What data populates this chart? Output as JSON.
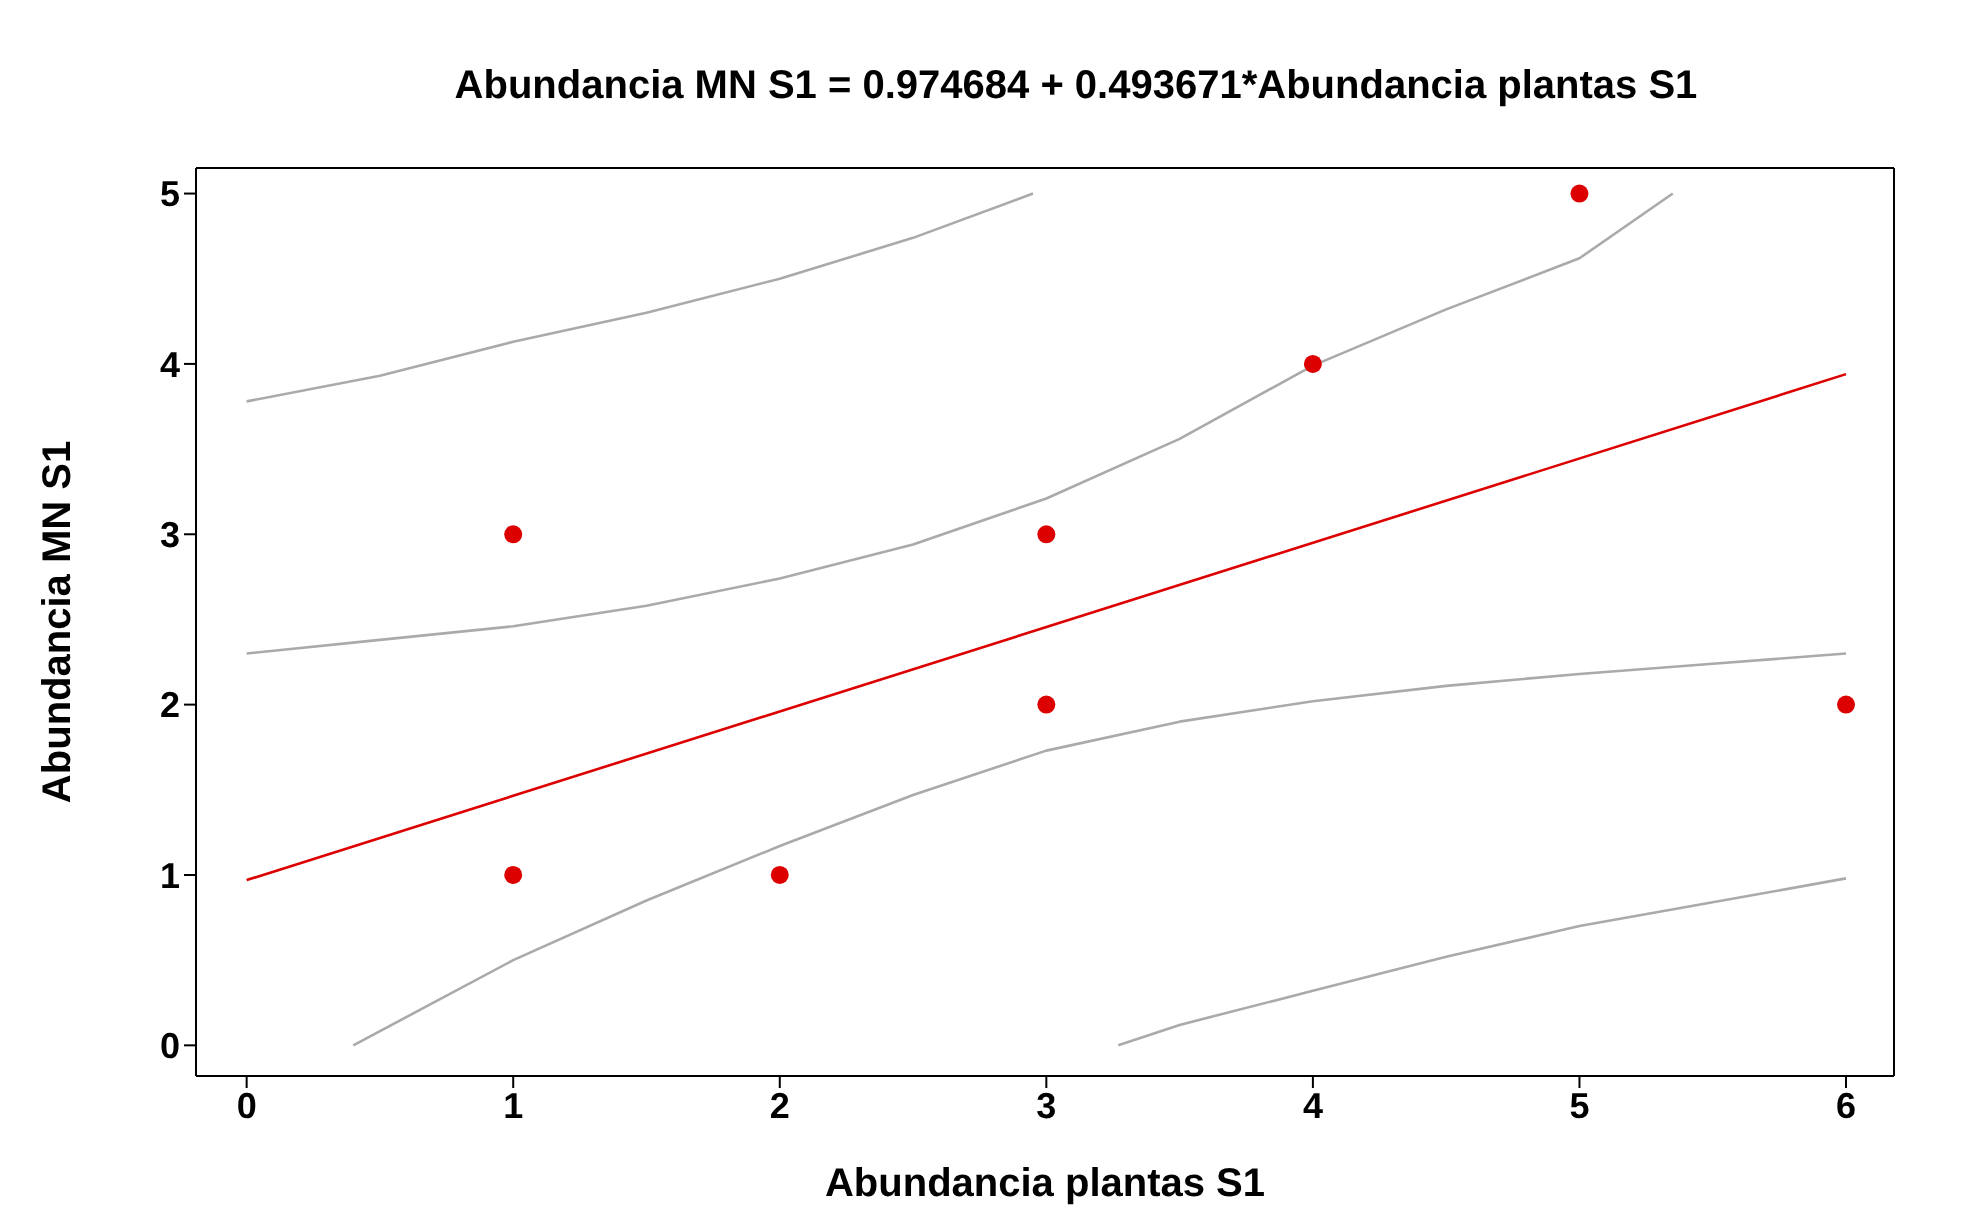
{
  "chart_data": {
    "type": "scatter",
    "title": "Abundancia MN S1 = 0.974684 + 0.493671*Abundancia plantas S1",
    "xlabel": "Abundancia plantas S1",
    "ylabel": "Abundancia MN S1",
    "xlim": [
      -0.19,
      6.18
    ],
    "xticks": [
      0,
      1,
      2,
      3,
      4,
      5,
      6
    ],
    "ylim": [
      -0.18,
      5.15
    ],
    "yticks": [
      0,
      1,
      2,
      3,
      4,
      5
    ],
    "grid": false,
    "series": [
      {
        "color": "#dd0000",
        "marker": "circle",
        "x": [
          1,
          1,
          2,
          3,
          3,
          4,
          5,
          6
        ],
        "values": [
          1,
          3,
          1,
          3,
          2,
          4,
          5,
          2
        ]
      },
      {
        "type": "line",
        "color": "#dd0000",
        "x": [
          0,
          6
        ],
        "values": [
          0.97,
          3.94
        ],
        "line_style": "solid"
      },
      {
        "type": "line",
        "color": "#aaaaaa",
        "x": [
          0,
          0.5,
          1,
          1.5,
          2,
          2.5,
          2.95
        ],
        "values": [
          3.78,
          3.93,
          4.13,
          4.3,
          4.5,
          4.74,
          5.0
        ],
        "line_style": "solid"
      },
      {
        "type": "line",
        "color": "#aaaaaa",
        "x": [
          0,
          0.5,
          1,
          1.5,
          2,
          2.5,
          3,
          3.5,
          4,
          4.5,
          5,
          5.35
        ],
        "values": [
          2.3,
          2.38,
          2.46,
          2.58,
          2.74,
          2.94,
          3.21,
          3.56,
          3.99,
          4.32,
          4.62,
          5.0
        ],
        "line_style": "solid"
      },
      {
        "type": "line",
        "color": "#aaaaaa",
        "x": [
          0.4,
          1,
          1.5,
          2,
          2.5,
          3,
          3.5,
          4,
          4.5,
          5,
          5.5,
          6
        ],
        "values": [
          0,
          0.5,
          0.85,
          1.17,
          1.47,
          1.73,
          1.9,
          2.02,
          2.11,
          2.18,
          2.24,
          2.3
        ],
        "line_style": "solid"
      },
      {
        "type": "line",
        "color": "#aaaaaa",
        "x": [
          3.27,
          3.5,
          4,
          4.5,
          5,
          5.5,
          6
        ],
        "values": [
          0,
          0.12,
          0.32,
          0.52,
          0.7,
          0.84,
          0.98
        ],
        "line_style": "solid"
      }
    ]
  }
}
